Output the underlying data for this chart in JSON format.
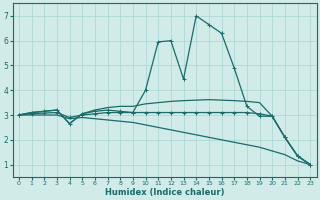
{
  "background_color": "#d1ebe9",
  "grid_color": "#afd8d4",
  "line_color": "#1a6b6a",
  "xlabel": "Humidex (Indice chaleur)",
  "xlim": [
    -0.5,
    23.5
  ],
  "ylim": [
    0.5,
    7.5
  ],
  "xticks": [
    0,
    1,
    2,
    3,
    4,
    5,
    6,
    7,
    8,
    9,
    10,
    11,
    12,
    13,
    14,
    15,
    16,
    17,
    18,
    19,
    20,
    21,
    22,
    23
  ],
  "yticks": [
    1,
    2,
    3,
    4,
    5,
    6,
    7
  ],
  "series": [
    {
      "x": [
        0,
        1,
        2,
        3,
        4,
        5,
        6,
        7,
        8,
        9,
        10,
        11,
        12,
        13,
        14,
        15,
        16,
        17,
        18,
        19,
        20,
        21,
        22,
        23
      ],
      "y": [
        3.0,
        3.1,
        3.15,
        3.2,
        2.65,
        3.05,
        3.15,
        3.2,
        3.15,
        3.1,
        4.0,
        5.95,
        6.0,
        4.45,
        7.0,
        6.65,
        6.3,
        4.9,
        3.35,
        2.95,
        2.95,
        2.1,
        1.35,
        1.0
      ],
      "marker": "+"
    },
    {
      "x": [
        0,
        1,
        2,
        3,
        4,
        5,
        6,
        7,
        8,
        9,
        10,
        11,
        12,
        13,
        14,
        15,
        16,
        17,
        18,
        19,
        20,
        21,
        22,
        23
      ],
      "y": [
        3.0,
        3.1,
        3.15,
        3.2,
        2.65,
        3.05,
        3.2,
        3.3,
        3.35,
        3.35,
        3.45,
        3.5,
        3.55,
        3.58,
        3.6,
        3.62,
        3.6,
        3.58,
        3.55,
        3.5,
        2.95,
        2.1,
        1.35,
        1.0
      ],
      "marker": null
    },
    {
      "x": [
        0,
        1,
        2,
        3,
        4,
        5,
        6,
        7,
        8,
        9,
        10,
        11,
        12,
        13,
        14,
        15,
        16,
        17,
        18,
        19,
        20,
        21,
        22,
        23
      ],
      "y": [
        3.0,
        3.05,
        3.08,
        3.1,
        2.9,
        3.0,
        3.05,
        3.1,
        3.1,
        3.1,
        3.1,
        3.1,
        3.1,
        3.1,
        3.1,
        3.1,
        3.1,
        3.1,
        3.1,
        3.05,
        2.95,
        2.1,
        1.35,
        1.0
      ],
      "marker": "+"
    },
    {
      "x": [
        0,
        1,
        2,
        3,
        4,
        5,
        6,
        7,
        8,
        9,
        10,
        11,
        12,
        13,
        14,
        15,
        16,
        17,
        18,
        19,
        20,
        21,
        22,
        23
      ],
      "y": [
        3.0,
        3.0,
        3.0,
        3.0,
        2.85,
        2.9,
        2.85,
        2.8,
        2.75,
        2.7,
        2.6,
        2.5,
        2.4,
        2.3,
        2.2,
        2.1,
        2.0,
        1.9,
        1.8,
        1.7,
        1.55,
        1.4,
        1.15,
        1.0
      ],
      "marker": null
    }
  ]
}
